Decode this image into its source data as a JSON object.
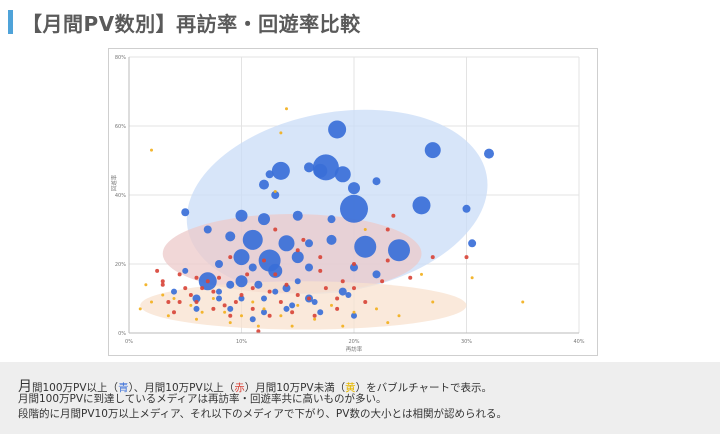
{
  "page": {
    "title": "【月間PV数別】再訪率・回遊率比較"
  },
  "caption": {
    "line1": {
      "first_char": "月",
      "part1": "間100万PV以上（",
      "blue": "青",
      "part2": "）、月間10万PV以上（",
      "red": "赤",
      "part3": "）月間10万PV未満（",
      "yellow": "黄",
      "part4": "）をバブルチャートで表示。"
    },
    "line2": "月間100万PVに到達しているメディアは再訪率・回遊率共に高いものが多い。",
    "line3": "段階的に月間PV10万以上メディア、それ以下のメディアで下がり、PV数の大小とは相関が認められる。"
  },
  "chart_data": {
    "type": "scatter",
    "xlabel": "再訪率",
    "ylabel": "回遊率",
    "xlim": [
      0,
      40
    ],
    "ylim": [
      0,
      80
    ],
    "x_ticks": [
      "0%",
      "10%",
      "20%",
      "30%",
      "40%"
    ],
    "y_ticks": [
      "0%",
      "20%",
      "40%",
      "60%",
      "80%"
    ],
    "grid": true,
    "colors": {
      "blue": "#3a6fd8",
      "red": "#d8453a",
      "yellow": "#f2b01e"
    },
    "regions": [
      {
        "color": "#c9dcf7",
        "cx": 18.5,
        "cy": 38,
        "rx": 13.5,
        "ry": 26,
        "rotate": -10
      },
      {
        "color": "#ecc9c9",
        "cx": 14.5,
        "cy": 23,
        "rx": 11.5,
        "ry": 11.5,
        "rotate": 0
      },
      {
        "color": "#f8e1cf",
        "cx": 15.5,
        "cy": 8,
        "rx": 14.5,
        "ry": 7,
        "rotate": 0
      }
    ],
    "series": [
      {
        "color": "blue",
        "points": [
          [
            18.5,
            59,
            9
          ],
          [
            17.5,
            48,
            13
          ],
          [
            20,
            36,
            14
          ],
          [
            19,
            46,
            8
          ],
          [
            17,
            47,
            7
          ],
          [
            16,
            48,
            5
          ],
          [
            13.5,
            47,
            9
          ],
          [
            12.5,
            46,
            4
          ],
          [
            27,
            53,
            8
          ],
          [
            32,
            52,
            5
          ],
          [
            22,
            44,
            4
          ],
          [
            20,
            42,
            6
          ],
          [
            26,
            37,
            9
          ],
          [
            30,
            36,
            4
          ],
          [
            12,
            43,
            5
          ],
          [
            13,
            40,
            4
          ],
          [
            5,
            35,
            4
          ],
          [
            10,
            34,
            6
          ],
          [
            12,
            33,
            6
          ],
          [
            15,
            34,
            5
          ],
          [
            18,
            33,
            4
          ],
          [
            7,
            30,
            4
          ],
          [
            9,
            28,
            5
          ],
          [
            11,
            27,
            10
          ],
          [
            14,
            26,
            8
          ],
          [
            16,
            26,
            4
          ],
          [
            18,
            27,
            5
          ],
          [
            21,
            25,
            11
          ],
          [
            24,
            24,
            11
          ],
          [
            30.5,
            26,
            4
          ],
          [
            10,
            22,
            8
          ],
          [
            12.5,
            21,
            11
          ],
          [
            15,
            22,
            6
          ],
          [
            13,
            18,
            7
          ],
          [
            11,
            19,
            4
          ],
          [
            8,
            20,
            4
          ],
          [
            16,
            19,
            4
          ],
          [
            20,
            19,
            4
          ],
          [
            7,
            15,
            9
          ],
          [
            10,
            15,
            6
          ],
          [
            9,
            14,
            4
          ],
          [
            11.5,
            14,
            4
          ],
          [
            14,
            13,
            4
          ],
          [
            16,
            10,
            4
          ],
          [
            19,
            12,
            4
          ],
          [
            22,
            17,
            4
          ],
          [
            6,
            10,
            4
          ],
          [
            8,
            10,
            3
          ],
          [
            10,
            10,
            3
          ],
          [
            12,
            10,
            3
          ],
          [
            14.5,
            8,
            3
          ],
          [
            16.5,
            9,
            3
          ],
          [
            19.5,
            11,
            3
          ],
          [
            6,
            7,
            3
          ],
          [
            9,
            7,
            3
          ],
          [
            12,
            6,
            3
          ],
          [
            14,
            7,
            3
          ],
          [
            17,
            6,
            3
          ],
          [
            11,
            4,
            3
          ],
          [
            20,
            5,
            3
          ],
          [
            8,
            12,
            3
          ],
          [
            13,
            12,
            3
          ],
          [
            15,
            15,
            3
          ],
          [
            5,
            18,
            3
          ],
          [
            4,
            12,
            3
          ]
        ]
      },
      {
        "color": "red",
        "points": [
          [
            7,
            15,
            2
          ],
          [
            9,
            22,
            2
          ],
          [
            12,
            21,
            2
          ],
          [
            15,
            24,
            2
          ],
          [
            17,
            18,
            2
          ],
          [
            20,
            20,
            2
          ],
          [
            23,
            21,
            2
          ],
          [
            23.5,
            34,
            2
          ],
          [
            23,
            30,
            2
          ],
          [
            27,
            22,
            2
          ],
          [
            30,
            22,
            2
          ],
          [
            3,
            14,
            2
          ],
          [
            3.5,
            9,
            2
          ],
          [
            4,
            6,
            2
          ],
          [
            5,
            13,
            2
          ],
          [
            5.5,
            11,
            2
          ],
          [
            6.5,
            13,
            2
          ],
          [
            7.5,
            12,
            2
          ],
          [
            8.5,
            8,
            2
          ],
          [
            9.5,
            9,
            2
          ],
          [
            10,
            11,
            2
          ],
          [
            11,
            13,
            2
          ],
          [
            12.5,
            12,
            2
          ],
          [
            13.5,
            9,
            2
          ],
          [
            14,
            14,
            2
          ],
          [
            15,
            11,
            2
          ],
          [
            16,
            10,
            2
          ],
          [
            17.5,
            13,
            2
          ],
          [
            18.5,
            10,
            2
          ],
          [
            20,
            13,
            2
          ],
          [
            22.5,
            15,
            2
          ],
          [
            25,
            16,
            2
          ],
          [
            6,
            9,
            2
          ],
          [
            7.5,
            7,
            2
          ],
          [
            9,
            5,
            2
          ],
          [
            11,
            7,
            2
          ],
          [
            12.5,
            5,
            2
          ],
          [
            14.5,
            6,
            2
          ],
          [
            16.5,
            5,
            2
          ],
          [
            18.5,
            7,
            2
          ],
          [
            10.5,
            17,
            2
          ],
          [
            13,
            17,
            2
          ],
          [
            8,
            16,
            2
          ],
          [
            2.5,
            18,
            2
          ],
          [
            3,
            15,
            2
          ],
          [
            4.5,
            17,
            2
          ],
          [
            6,
            16,
            2
          ],
          [
            19,
            15,
            2
          ],
          [
            21,
            9,
            2
          ],
          [
            15.5,
            27,
            2
          ],
          [
            13,
            30,
            2
          ],
          [
            17,
            22,
            2
          ],
          [
            11.5,
            0.5,
            2
          ],
          [
            4.5,
            9,
            2
          ]
        ]
      },
      {
        "color": "yellow",
        "points": [
          [
            14,
            65,
            1.5
          ],
          [
            13.5,
            58,
            1.5
          ],
          [
            2,
            53,
            1.5
          ],
          [
            13,
            41,
            1.5
          ],
          [
            21,
            30,
            1.5
          ],
          [
            1.5,
            14,
            1.5
          ],
          [
            2,
            9,
            1.5
          ],
          [
            3,
            11,
            1.5
          ],
          [
            4,
            10,
            1.5
          ],
          [
            5.5,
            8,
            1.5
          ],
          [
            6.5,
            6,
            1.5
          ],
          [
            7.5,
            10,
            1.5
          ],
          [
            8.5,
            6,
            1.5
          ],
          [
            10,
            5,
            1.5
          ],
          [
            11,
            9,
            1.5
          ],
          [
            12,
            7,
            1.5
          ],
          [
            13.5,
            5,
            1.5
          ],
          [
            15,
            8,
            1.5
          ],
          [
            16.5,
            4,
            1.5
          ],
          [
            18,
            8,
            1.5
          ],
          [
            20,
            6,
            1.5
          ],
          [
            22,
            7,
            1.5
          ],
          [
            24,
            5,
            1.5
          ],
          [
            27,
            9,
            1.5
          ],
          [
            35,
            9,
            1.5
          ],
          [
            30.5,
            16,
            1.5
          ],
          [
            26,
            17,
            1.5
          ],
          [
            1,
            7,
            1.5
          ],
          [
            3.5,
            5,
            1.5
          ],
          [
            9,
            3,
            1.5
          ],
          [
            14.5,
            2,
            1.5
          ],
          [
            19,
            2,
            1.5
          ],
          [
            23,
            3,
            1.5
          ],
          [
            6,
            4,
            1.5
          ],
          [
            11.5,
            2,
            1.5
          ]
        ]
      }
    ]
  }
}
